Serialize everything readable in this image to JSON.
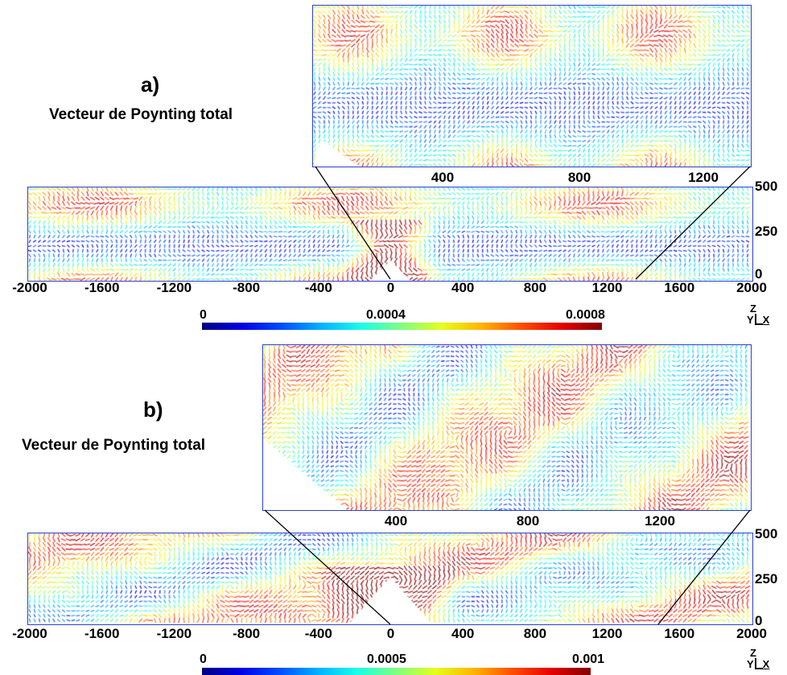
{
  "panels": [
    {
      "letter": "a)",
      "title": "Vecteur de Poynting total",
      "inset_x_ticks": [
        "400",
        "800",
        "1200"
      ],
      "main_x_ticks": [
        "-2000",
        "-1600",
        "-1200",
        "-800",
        "-400",
        "0",
        "400",
        "800",
        "1200",
        "1600",
        "2000"
      ],
      "main_y_ticks": [
        "500",
        "250",
        "0"
      ],
      "colorbar": {
        "min": "0",
        "mid": "0.0004",
        "max": "0.0008"
      },
      "axes": {
        "z": "Z",
        "y": "Y",
        "x": "X"
      },
      "field": {
        "pattern": "bands",
        "strength": 0.45
      }
    },
    {
      "letter": "b)",
      "title": "Vecteur de Poynting total",
      "inset_x_ticks": [
        "400",
        "800",
        "1200"
      ],
      "main_x_ticks": [
        "-2000",
        "-1600",
        "-1200",
        "-800",
        "-400",
        "0",
        "400",
        "800",
        "1200",
        "1600",
        "2000"
      ],
      "main_y_ticks": [
        "500",
        "250",
        "0"
      ],
      "colorbar": {
        "min": "0",
        "mid": "0.0005",
        "max": "0.001"
      },
      "axes": {
        "z": "Z",
        "y": "Y",
        "x": "X"
      },
      "field": {
        "pattern": "vortices",
        "strength": 0.7
      }
    }
  ],
  "colors": {
    "frame": "#2b3fd6",
    "jet_low": "#00007f",
    "jet_high": "#7f0000"
  }
}
